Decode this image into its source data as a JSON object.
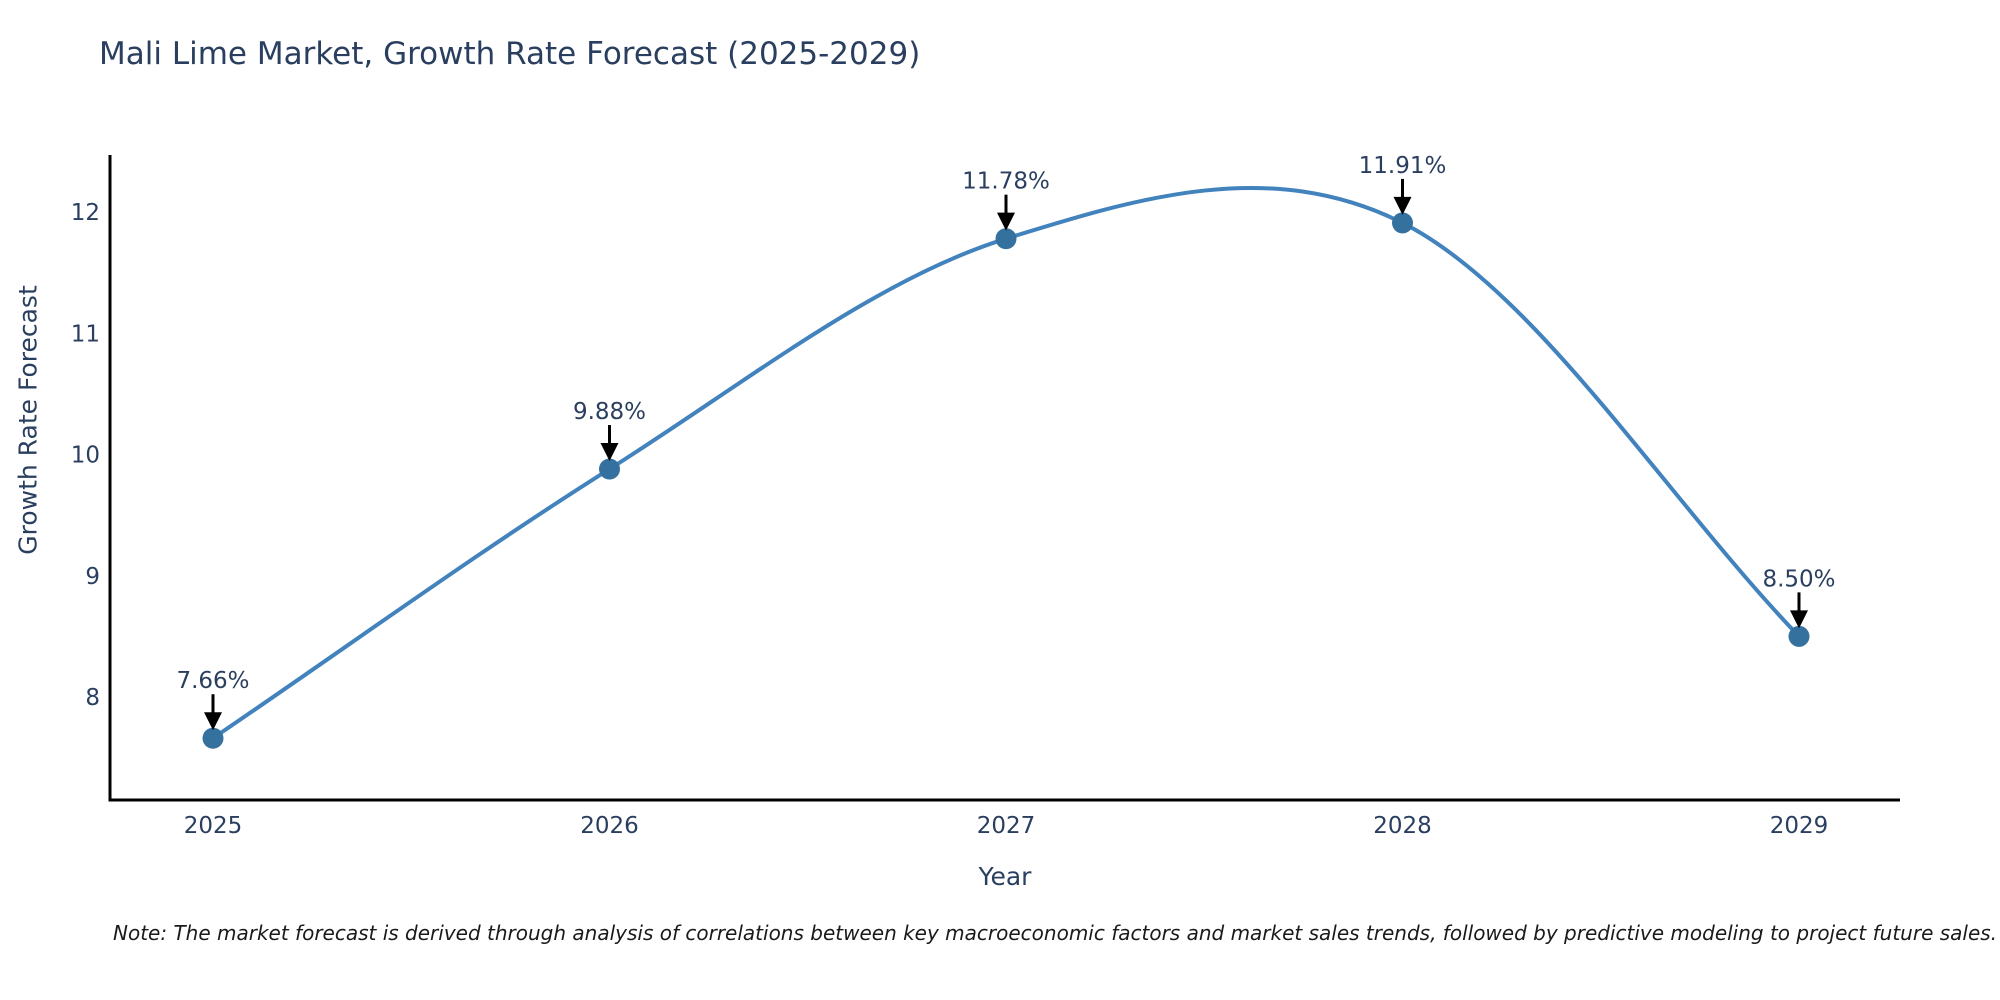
{
  "title": "Mali Lime Market, Growth Rate Forecast (2025-2029)",
  "note": "Note: The market forecast is derived through analysis of correlations between key macroeconomic factors and market sales trends, followed by predictive modeling to project future sales.",
  "chart_data": {
    "type": "line",
    "title": "Mali Lime Market, Growth Rate Forecast (2025-2029)",
    "xlabel": "Year",
    "ylabel": "Growth Rate Forecast",
    "categories": [
      "2025",
      "2026",
      "2027",
      "2028",
      "2029"
    ],
    "values": [
      7.66,
      9.88,
      11.78,
      11.91,
      8.5
    ],
    "point_labels": [
      "7.66%",
      "9.88%",
      "11.78%",
      "11.91%",
      "8.50%"
    ],
    "yticks": [
      8,
      9,
      10,
      11,
      12
    ],
    "ylim": [
      7.15,
      12.47
    ],
    "line_shape": "spline",
    "grid": false,
    "legend": "none",
    "annotations": "value labels with downward arrows above each point",
    "colors": {
      "line": "#4383bd",
      "marker": "#35719f",
      "text": "#2a3f5f",
      "axis": "#000000",
      "arrow": "#000000",
      "note_text": "#1a1a1a",
      "background": "#ffffff"
    }
  }
}
